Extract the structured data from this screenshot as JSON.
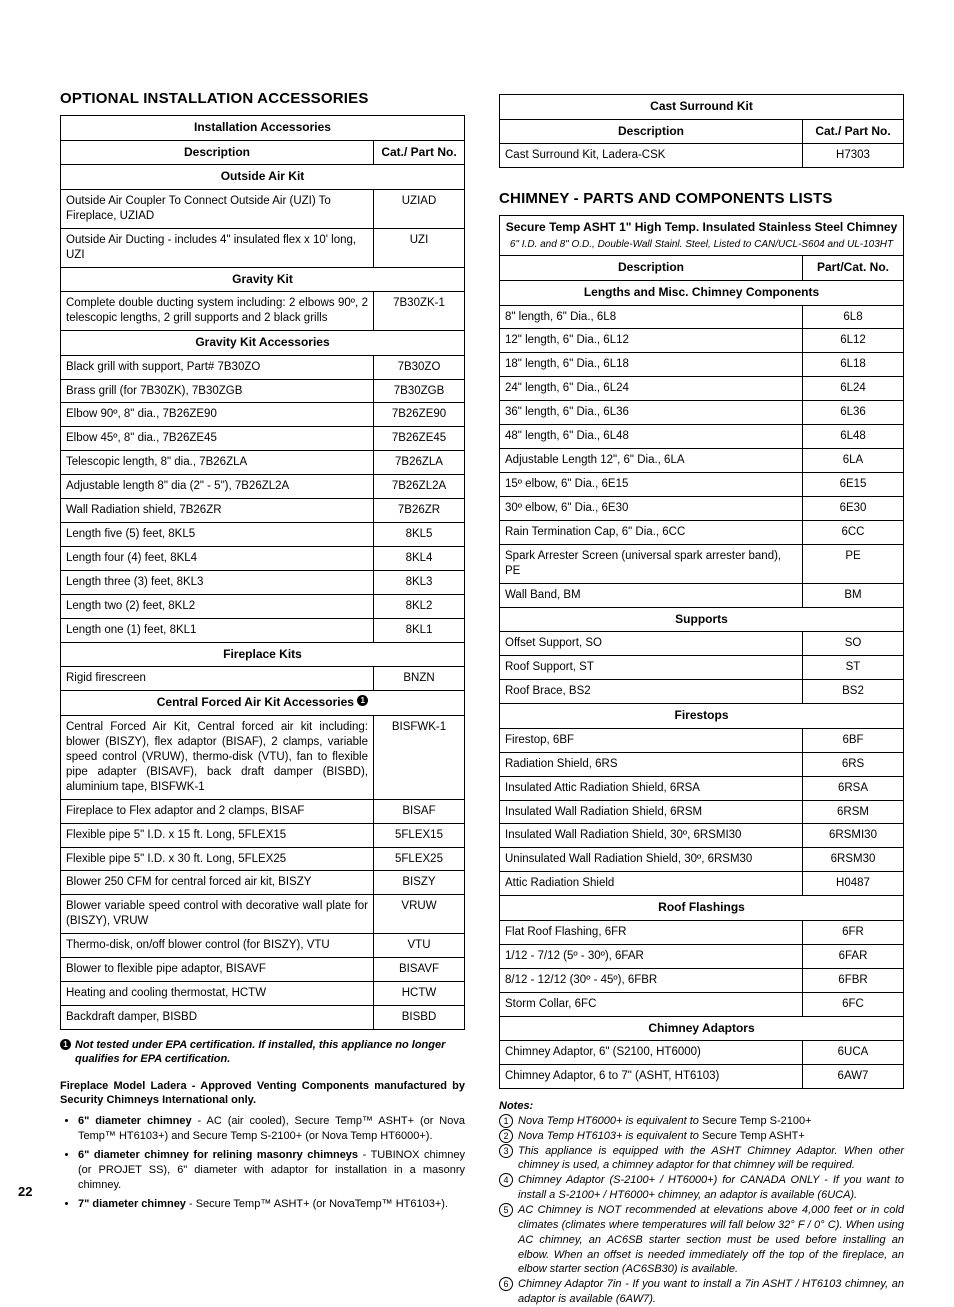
{
  "pageNumber": "22",
  "left": {
    "sectionTitle": "OPTIONAL INSTALLATION ACCESSORIES",
    "tableTitle": "Installation Accessories",
    "colDesc": "Description",
    "colPart": "Cat./ Part No.",
    "groups": [
      {
        "header": "Outside Air Kit",
        "rows": [
          {
            "desc": "Outside Air Coupler To Connect Outside Air (UZI) To Fireplace, UZIAD",
            "part": "UZIAD"
          },
          {
            "desc": "Outside Air Ducting - includes 4\" insulated flex x 10' long, UZI",
            "part": "UZI"
          }
        ]
      },
      {
        "header": "Gravity Kit",
        "rows": [
          {
            "desc": "Complete double ducting system including: 2 elbows 90º, 2 telescopic lengths, 2 grill supports and 2 black grills",
            "part": "7B30ZK-1"
          }
        ]
      },
      {
        "header": "Gravity Kit Accessories",
        "rows": [
          {
            "desc": "Black grill with support, Part# 7B30ZO",
            "part": "7B30ZO"
          },
          {
            "desc": "Brass grill (for 7B30ZK), 7B30ZGB",
            "part": "7B30ZGB"
          },
          {
            "desc": "Elbow 90º, 8\" dia., 7B26ZE90",
            "part": "7B26ZE90"
          },
          {
            "desc": "Elbow 45º, 8\" dia., 7B26ZE45",
            "part": "7B26ZE45"
          },
          {
            "desc": "Telescopic length, 8\" dia., 7B26ZLA",
            "part": "7B26ZLA"
          },
          {
            "desc": "Adjustable length 8\" dia (2\" - 5\"), 7B26ZL2A",
            "part": "7B26ZL2A"
          },
          {
            "desc": "Wall Radiation shield, 7B26ZR",
            "part": "7B26ZR"
          },
          {
            "desc": "Length five (5) feet, 8KL5",
            "part": "8KL5"
          },
          {
            "desc": "Length four (4) feet, 8KL4",
            "part": "8KL4"
          },
          {
            "desc": "Length three (3) feet, 8KL3",
            "part": "8KL3"
          },
          {
            "desc": "Length two (2) feet, 8KL2",
            "part": "8KL2"
          },
          {
            "desc": "Length one (1) feet, 8KL1",
            "part": "8KL1"
          }
        ]
      },
      {
        "header": "Fireplace Kits",
        "rows": [
          {
            "desc": "Rigid firescreen",
            "part": "BNZN"
          }
        ]
      },
      {
        "header": "Central Forced Air Kit Accessories ",
        "headerBadge": "1",
        "rows": [
          {
            "desc": "Central Forced Air Kit, Central forced air kit including: blower (BISZY), flex adaptor (BISAF), 2 clamps, variable speed control (VRUW), thermo-disk (VTU), fan to flexible pipe adapter (BISAVF), back draft damper (BISBD), aluminium tape, BISFWK-1",
            "part": "BISFWK-1"
          },
          {
            "desc": "Fireplace to Flex adaptor and 2 clamps, BISAF",
            "part": "BISAF"
          },
          {
            "desc": "Flexible pipe 5\" I.D. x  15 ft. Long, 5FLEX15",
            "part": "5FLEX15"
          },
          {
            "desc": "Flexible pipe 5\" I.D. x  30 ft. Long, 5FLEX25",
            "part": "5FLEX25"
          },
          {
            "desc": "Blower 250 CFM for central forced air kit, BISZY",
            "part": "BISZY"
          },
          {
            "desc": "Blower variable speed control with decorative wall plate for (BISZY), VRUW",
            "part": "VRUW"
          },
          {
            "desc": "Thermo-disk, on/off blower control (for BISZY), VTU",
            "part": "VTU"
          },
          {
            "desc": "Blower to flexible pipe adaptor, BISAVF",
            "part": "BISAVF"
          },
          {
            "desc": "Heating and cooling thermostat, HCTW",
            "part": "HCTW"
          },
          {
            "desc": "Backdraft damper, BISBD",
            "part": "BISBD"
          }
        ]
      }
    ],
    "footnote": {
      "badge": "1",
      "text": "Not tested under EPA certification. If installed, this appliance no longer qualifies for EPA certification."
    },
    "midnote": "Fireplace Model Ladera - Approved Venting Components manufactured by Security Chimneys International only.",
    "bullets": [
      "<b>6\" diameter chimney</b> - AC (air cooled),  Secure Temp™  ASHT+ (or Nova Temp™  HT6103+) and Secure Temp S-2100+ (or Nova Temp HT6000+).",
      "<b>6\" diameter chimney for relining masonry chimneys</b> - TUBINOX chimney (or PROJET SS), 6\" diameter with adaptor for installation in a masonry chimney.",
      "<b>7\" diameter chimney</b> - Secure Temp™ ASHT+ (or NovaTemp™ HT6103+)."
    ]
  },
  "right": {
    "castTable": {
      "title": "Cast Surround Kit",
      "colDesc": "Description",
      "colPart": "Cat./ Part No.",
      "rows": [
        {
          "desc": "Cast Surround Kit, Ladera-CSK",
          "part": "H7303"
        }
      ]
    },
    "sectionTitle": "CHIMNEY - PARTS AND COMPONENTS LISTS",
    "chimneyTable": {
      "title": "Secure Temp ASHT  1\" High Temp. Insulated Stainless Steel Chimney",
      "subtitle": "6\" I.D. and 8\" O.D., Double-Wall Stainl. Steel, Listed to CAN/UCL-S604 and UL-103HT",
      "colDesc": "Description",
      "colPart": "Part/Cat. No.",
      "groups": [
        {
          "header": "Lengths and Misc. Chimney Components",
          "rows": [
            {
              "desc": "8\" length, 6\" Dia., 6L8",
              "part": "6L8"
            },
            {
              "desc": "12\" length, 6\" Dia., 6L12",
              "part": "6L12"
            },
            {
              "desc": "18\" length, 6\" Dia., 6L18",
              "part": "6L18"
            },
            {
              "desc": "24\" length, 6\" Dia., 6L24",
              "part": "6L24"
            },
            {
              "desc": "36\" length, 6\" Dia., 6L36",
              "part": "6L36"
            },
            {
              "desc": "48\" length, 6\" Dia., 6L48",
              "part": "6L48"
            },
            {
              "desc": "Adjustable Length 12\", 6\" Dia., 6LA",
              "part": "6LA"
            },
            {
              "desc": "15º elbow, 6\" Dia., 6E15",
              "part": "6E15"
            },
            {
              "desc": "30º elbow, 6\" Dia., 6E30",
              "part": "6E30"
            },
            {
              "desc": "Rain Termination Cap, 6\" Dia., 6CC",
              "part": "6CC"
            },
            {
              "desc": "Spark Arrester Screen (universal spark arrester band), PE",
              "part": "PE"
            },
            {
              "desc": "Wall Band, BM",
              "part": "BM"
            }
          ]
        },
        {
          "header": "Supports",
          "rows": [
            {
              "desc": "Offset Support, SO",
              "part": "SO"
            },
            {
              "desc": "Roof Support, ST",
              "part": "ST"
            },
            {
              "desc": "Roof Brace, BS2",
              "part": "BS2"
            }
          ]
        },
        {
          "header": "Firestops",
          "rows": [
            {
              "desc": "Firestop, 6BF",
              "part": "6BF"
            },
            {
              "desc": "Radiation Shield, 6RS",
              "part": "6RS"
            },
            {
              "desc": "Insulated Attic Radiation Shield, 6RSA",
              "part": "6RSA"
            },
            {
              "desc": "Insulated Wall Radiation Shield, 6RSM",
              "part": "6RSM"
            },
            {
              "desc": "Insulated Wall Radiation Shield, 30º, 6RSMI30",
              "part": "6RSMI30"
            },
            {
              "desc": "Uninsulated Wall Radiation Shield, 30º, 6RSM30",
              "part": "6RSM30"
            },
            {
              "desc": "Attic Radiation Shield",
              "part": "H0487"
            }
          ]
        },
        {
          "header": "Roof Flashings",
          "rows": [
            {
              "desc": "Flat Roof Flashing, 6FR",
              "part": "6FR"
            },
            {
              "desc": "1/12  -  7/12  (5º - 30º), 6FAR",
              "part": "6FAR"
            },
            {
              "desc": "8/12  -  12/12  (30º - 45º), 6FBR",
              "part": "6FBR"
            },
            {
              "desc": "Storm Collar, 6FC",
              "part": "6FC"
            }
          ]
        },
        {
          "header": "Chimney Adaptors",
          "rows": [
            {
              "desc": "Chimney Adaptor, 6\" (S2100, HT6000)",
              "part": "6UCA"
            },
            {
              "desc": "Chimney Adaptor, 6 to 7\" (ASHT, HT6103)",
              "part": "6AW7"
            }
          ]
        }
      ]
    },
    "notesTitle": "Notes:",
    "notes": [
      {
        "n": "1",
        "html": "<i>Nova Temp HT6000+ is equivalent to</i> Secure Temp S-2100+"
      },
      {
        "n": "2",
        "html": "<i>Nova Temp  HT6103+ is equivalent to</i> Secure Temp ASHT+"
      },
      {
        "n": "3",
        "html": "<i>This appliance is equipped with the ASHT Chimney Adaptor. When other chimney is used, a chimney adaptor for that chimney will be required.</i>"
      },
      {
        "n": "4",
        "html": "<i>Chimney Adaptor (S-2100+ / HT6000+) for CANADA ONLY -  If you want to install a S-2100+ / HT6000+ chimney, an adaptor is available (6UCA).</i>"
      },
      {
        "n": "5",
        "html": "<i>AC Chimney is NOT recommended at elevations above 4,000 feet or in cold climates (climates where temperatures will fall below 32° F / 0° C).  When using AC chimney, an AC6SB starter section must be used before installing an elbow.  When an offset is needed immediately off the top of the fireplace, an elbow starter section (AC6SB30) is available.</i>"
      },
      {
        "n": "6",
        "html": "<i>Chimney Adaptor 7in - If you want to install a 7in ASHT / HT6103 chimney, an adaptor is available (6AW7).</i>"
      }
    ]
  }
}
